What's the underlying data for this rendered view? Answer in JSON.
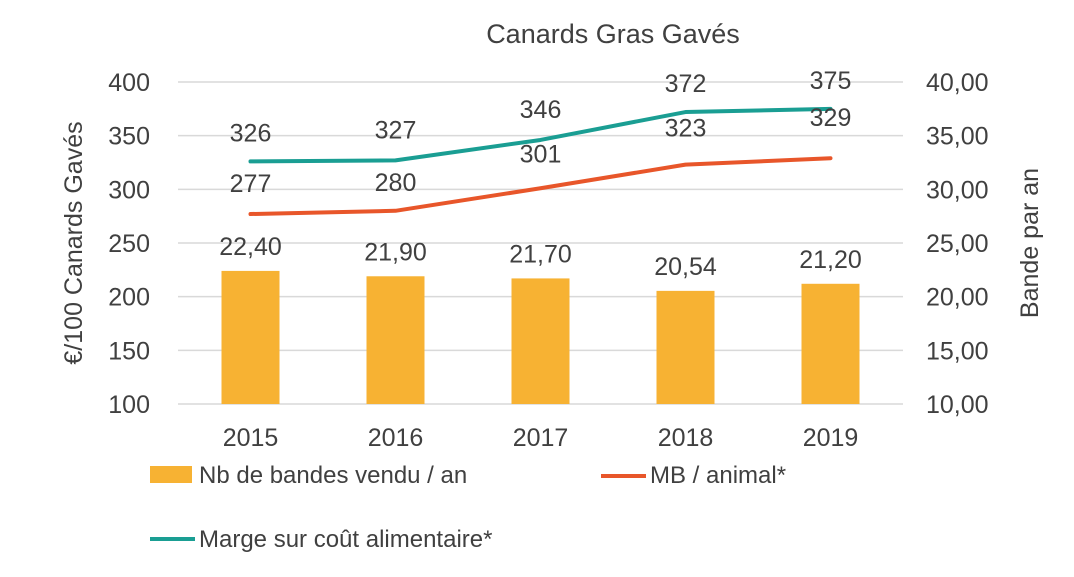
{
  "chart_data": {
    "type": "bar",
    "title": "Canards Gras Gavés",
    "categories": [
      "2015",
      "2016",
      "2017",
      "2018",
      "2019"
    ],
    "y_left": {
      "label": "€/100 Canards Gavés",
      "min": 100,
      "max": 400,
      "ticks": [
        "400",
        "350",
        "300",
        "250",
        "200",
        "150",
        "100"
      ]
    },
    "y_right": {
      "label": "Bande par an",
      "min": 10,
      "max": 40,
      "ticks": [
        "40,00",
        "35,00",
        "30,00",
        "25,00",
        "20,00",
        "15,00",
        "10,00"
      ]
    },
    "series": [
      {
        "name": "Nb de bandes vendu / an",
        "type": "bar",
        "axis": "right",
        "values": [
          22.4,
          21.9,
          21.7,
          20.54,
          21.2
        ],
        "labels": [
          "22,40",
          "21,90",
          "21,70",
          "20,54",
          "21,20"
        ],
        "color": "#F7B233"
      },
      {
        "name": "MB / animal*",
        "type": "line",
        "axis": "left",
        "values": [
          277,
          280,
          301,
          323,
          329
        ],
        "labels": [
          "277",
          "280",
          "301",
          "323",
          "329"
        ],
        "color": "#E8562A"
      },
      {
        "name": "Marge sur coût alimentaire*",
        "type": "line",
        "axis": "left",
        "values": [
          326,
          327,
          346,
          372,
          375
        ],
        "labels": [
          "326",
          "327",
          "346",
          "372",
          "375"
        ],
        "color": "#1A9E93"
      }
    ],
    "grid": true,
    "legend_position": "bottom"
  }
}
